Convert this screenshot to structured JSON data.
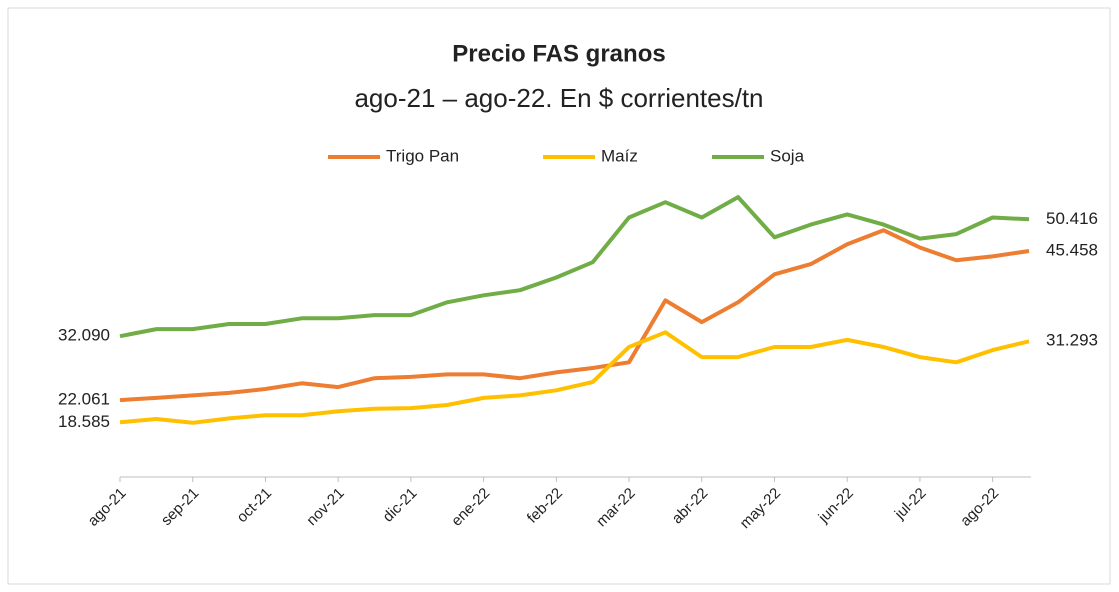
{
  "chart_data": {
    "type": "line",
    "title": "Precio FAS granos",
    "subtitle": "ago-21 – ago-22. En $ corrientes/tn",
    "categories": [
      "ago-21",
      null,
      "sep-21",
      null,
      "oct-21",
      null,
      "nov-21",
      null,
      "dic-21",
      null,
      "ene-22",
      null,
      "feb-22",
      null,
      "mar-22",
      null,
      "abr-22",
      null,
      "may-22",
      null,
      "jun-22",
      null,
      "jul-22",
      null,
      "ago-22",
      null
    ],
    "ylim": [
      10000,
      58000
    ],
    "legend": "top",
    "series": [
      {
        "name": "Trigo Pan",
        "color": "#ED7D31",
        "values": [
          22061,
          22400,
          22800,
          23200,
          23800,
          24700,
          24100,
          25500,
          25700,
          26100,
          26100,
          25500,
          26400,
          27100,
          28000,
          37700,
          34300,
          37400,
          41800,
          43400,
          46500,
          48700,
          46000,
          44000,
          44600,
          45458
        ],
        "value_labels": [
          "22.061",
          null,
          null,
          null,
          null,
          null,
          null,
          null,
          null,
          null,
          null,
          null,
          null,
          null,
          null,
          null,
          null,
          null,
          null,
          null,
          null,
          null,
          null,
          null,
          null,
          "45.458"
        ]
      },
      {
        "name": "Maíz",
        "color": "#FFC000",
        "values": [
          18585,
          19100,
          18500,
          19200,
          19700,
          19700,
          20300,
          20700,
          20800,
          21300,
          22400,
          22800,
          23600,
          24900,
          30400,
          32700,
          28800,
          28800,
          30400,
          30400,
          31500,
          30400,
          28800,
          28000,
          29900,
          31293
        ],
        "value_labels": [
          "18.585",
          null,
          null,
          null,
          null,
          null,
          null,
          null,
          null,
          null,
          null,
          null,
          null,
          null,
          null,
          null,
          null,
          null,
          null,
          null,
          null,
          null,
          null,
          null,
          null,
          "31.293"
        ]
      },
      {
        "name": "Soja",
        "color": "#70AD47",
        "values": [
          32090,
          33200,
          33200,
          34000,
          34000,
          34900,
          34900,
          35400,
          35400,
          37400,
          38500,
          39300,
          41300,
          43700,
          50700,
          53100,
          50700,
          53900,
          47600,
          49600,
          51200,
          49600,
          47400,
          48100,
          50700,
          50416
        ],
        "value_labels": [
          "32.090",
          null,
          null,
          null,
          null,
          null,
          null,
          null,
          null,
          null,
          null,
          null,
          null,
          null,
          null,
          null,
          null,
          null,
          null,
          null,
          null,
          null,
          null,
          null,
          null,
          "50.416"
        ]
      }
    ]
  }
}
